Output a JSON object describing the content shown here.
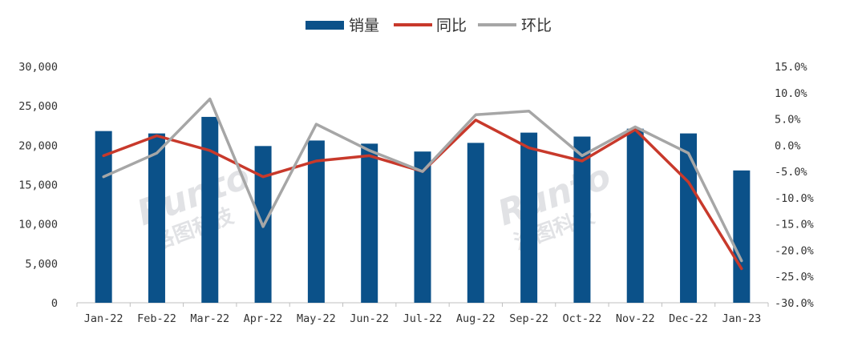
{
  "chart_data": {
    "type": "bar",
    "categories": [
      "Jan-22",
      "Feb-22",
      "Mar-22",
      "Apr-22",
      "May-22",
      "Jun-22",
      "Jul-22",
      "Aug-22",
      "Sep-22",
      "Oct-22",
      "Nov-22",
      "Dec-22",
      "Jan-23"
    ],
    "series": [
      {
        "name": "销量",
        "kind": "bar",
        "axis": "left",
        "color": "#0b5189",
        "values": [
          21800,
          21500,
          23600,
          19900,
          20600,
          20200,
          19200,
          20300,
          21600,
          21100,
          22100,
          21500,
          16800
        ]
      },
      {
        "name": "同比",
        "kind": "line",
        "axis": "right",
        "color": "#c8392b",
        "values": [
          -2.0,
          1.8,
          -1.0,
          -6.0,
          -3.0,
          -2.0,
          -5.0,
          4.8,
          -0.5,
          -3.0,
          3.0,
          -7.0,
          -23.5
        ]
      },
      {
        "name": "环比",
        "kind": "line",
        "axis": "right",
        "color": "#a6a6a6",
        "values": [
          -6.0,
          -1.5,
          8.8,
          -15.5,
          4.0,
          -1.0,
          -5.0,
          5.8,
          6.5,
          -2.0,
          3.5,
          -1.5,
          -22.0
        ]
      }
    ],
    "y_left": {
      "min": 0,
      "max": 30000,
      "ticks": [
        "30,000",
        "25,000",
        "20,000",
        "15,000",
        "10,000",
        "5,000",
        "0"
      ]
    },
    "y_right": {
      "min": -30,
      "max": 15,
      "ticks": [
        "15.0%",
        "10.0%",
        "5.0%",
        "0.0%",
        "-5.0%",
        "-10.0%",
        "-15.0%",
        "-20.0%",
        "-25.0%",
        "-30.0%"
      ]
    },
    "legend": {
      "position": "top-center",
      "items": [
        "销量",
        "同比",
        "环比"
      ]
    },
    "grid": false
  },
  "watermark": {
    "latin": "Runto",
    "cn": "洛图科技"
  }
}
